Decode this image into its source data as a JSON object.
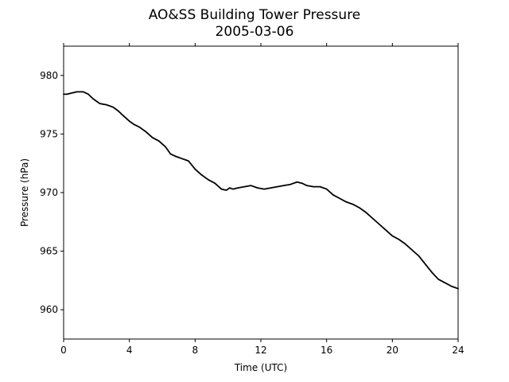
{
  "chart_data": {
    "type": "line",
    "title": "AO&SS Building Tower Pressure",
    "subtitle": "2005-03-06",
    "xlabel": "Time (UTC)",
    "ylabel": "Pressure (hPa)",
    "xlim": [
      0,
      24
    ],
    "ylim": [
      957.5,
      982.5
    ],
    "xticks": [
      0,
      4,
      8,
      12,
      16,
      20,
      24
    ],
    "yticks": [
      960,
      965,
      970,
      975,
      980
    ],
    "grid": false,
    "legend": "none",
    "series": [
      {
        "color": "#000000",
        "x": [
          0,
          0.2,
          0.5,
          0.8,
          1.0,
          1.2,
          1.5,
          1.8,
          2.2,
          2.6,
          3.0,
          3.3,
          3.6,
          4.0,
          4.3,
          4.6,
          5.0,
          5.4,
          5.8,
          6.2,
          6.5,
          6.8,
          7.2,
          7.6,
          8.0,
          8.4,
          8.8,
          9.2,
          9.6,
          9.9,
          10.1,
          10.3,
          10.6,
          11.0,
          11.4,
          11.8,
          12.2,
          12.6,
          13.0,
          13.4,
          13.8,
          14.2,
          14.5,
          14.8,
          15.2,
          15.6,
          16.0,
          16.4,
          16.8,
          17.2,
          17.6,
          18.0,
          18.4,
          18.8,
          19.2,
          19.6,
          20.0,
          20.4,
          20.8,
          21.2,
          21.6,
          22.0,
          22.4,
          22.8,
          23.2,
          23.6,
          24.0
        ],
        "y": [
          978.4,
          978.4,
          978.5,
          978.6,
          978.6,
          978.6,
          978.4,
          978.0,
          977.6,
          977.5,
          977.3,
          977.0,
          976.6,
          976.1,
          975.8,
          975.6,
          975.2,
          974.7,
          974.4,
          973.9,
          973.3,
          973.1,
          972.9,
          972.7,
          972.0,
          971.5,
          971.1,
          970.8,
          970.3,
          970.2,
          970.4,
          970.3,
          970.4,
          970.5,
          970.6,
          970.4,
          970.3,
          970.4,
          970.5,
          970.6,
          970.7,
          970.9,
          970.8,
          970.6,
          970.5,
          970.5,
          970.3,
          969.8,
          969.5,
          969.2,
          969.0,
          968.7,
          968.3,
          967.8,
          967.3,
          966.8,
          966.3,
          966.0,
          965.6,
          965.1,
          964.6,
          963.9,
          963.2,
          962.6,
          962.3,
          962.0,
          961.8
        ]
      }
    ]
  }
}
